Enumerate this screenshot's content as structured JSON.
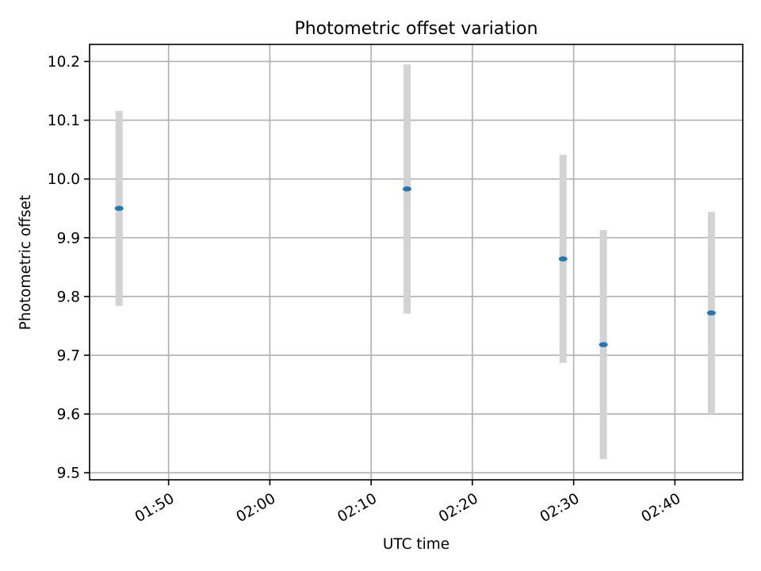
{
  "chart_data": {
    "type": "scatter",
    "title": "Photometric offset variation",
    "xlabel": "UTC time",
    "ylabel": "Photometric offset",
    "x_ticks": [
      "01:50",
      "02:00",
      "02:10",
      "02:20",
      "02:30",
      "02:40"
    ],
    "x_tick_minutes": [
      110,
      120,
      130,
      140,
      150,
      160
    ],
    "xlim_minutes": [
      102.2,
      166.7
    ],
    "y_ticks": [
      "9.5",
      "9.6",
      "9.7",
      "9.8",
      "9.9",
      "10.0",
      "10.1",
      "10.2"
    ],
    "ylim": [
      9.488,
      10.229
    ],
    "grid": true,
    "point_color": "#1f77b4",
    "errorbar_color": "#d3d3d3",
    "points": [
      {
        "time": "01:45:07",
        "y": 9.95,
        "yerr": 0.166
      },
      {
        "time": "02:13:33",
        "y": 9.983,
        "yerr": 0.212
      },
      {
        "time": "02:28:57",
        "y": 9.864,
        "yerr": 0.177
      },
      {
        "time": "02:32:56",
        "y": 9.718,
        "yerr": 0.195
      },
      {
        "time": "02:43:36",
        "y": 9.772,
        "yerr": 0.172
      }
    ]
  }
}
